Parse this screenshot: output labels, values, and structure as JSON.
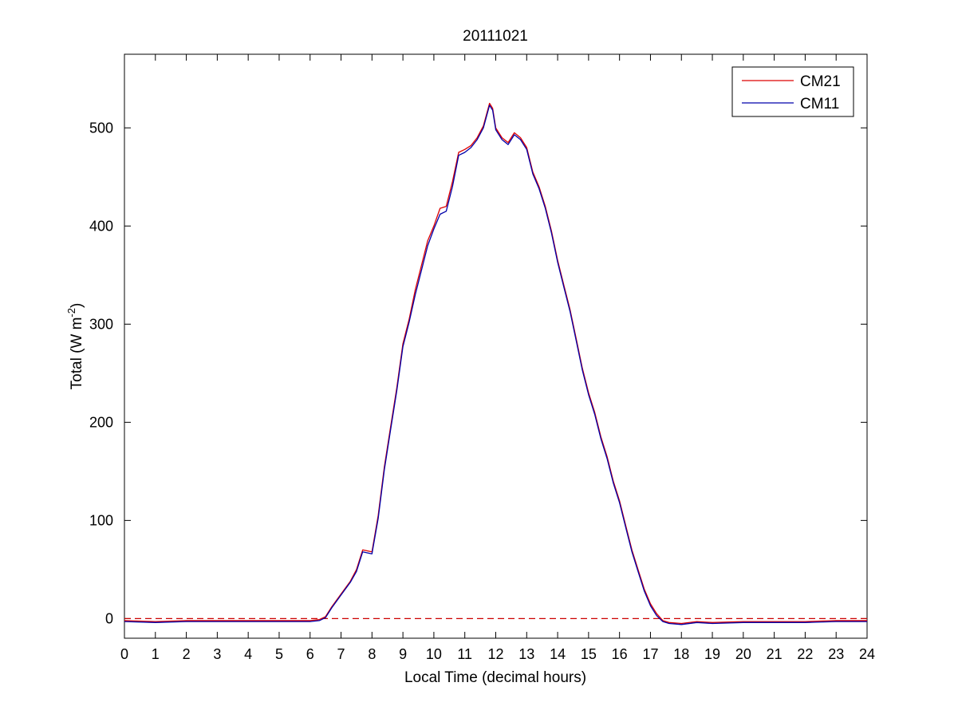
{
  "chart_data": {
    "type": "line",
    "title": "20111021",
    "xlabel": "Local Time (decimal hours)",
    "ylabel": {
      "prefix": "Total (W m",
      "superscript": "-2",
      "suffix": ")"
    },
    "xlim": [
      0,
      24
    ],
    "ylim": [
      -20,
      575
    ],
    "xticks": [
      0,
      1,
      2,
      3,
      4,
      5,
      6,
      7,
      8,
      9,
      10,
      11,
      12,
      13,
      14,
      15,
      16,
      17,
      18,
      19,
      20,
      21,
      22,
      23,
      24
    ],
    "yticks": [
      0,
      100,
      200,
      300,
      400,
      500
    ],
    "grid": false,
    "legend_position": "top-right",
    "reference_line": {
      "y": 0,
      "style": "dashed",
      "color": "#cc0000"
    },
    "series": [
      {
        "name": "CM21",
        "color": "#dd0000",
        "x": [
          0,
          1,
          2,
          3,
          4,
          5,
          6,
          6.3,
          6.5,
          6.7,
          7.0,
          7.3,
          7.5,
          7.7,
          8.0,
          8.2,
          8.4,
          8.6,
          8.8,
          9.0,
          9.2,
          9.4,
          9.6,
          9.8,
          10.0,
          10.2,
          10.4,
          10.6,
          10.8,
          11.0,
          11.2,
          11.4,
          11.6,
          11.8,
          11.9,
          12.0,
          12.2,
          12.4,
          12.6,
          12.8,
          13.0,
          13.2,
          13.4,
          13.6,
          13.8,
          14.0,
          14.2,
          14.4,
          14.6,
          14.8,
          15.0,
          15.2,
          15.4,
          15.6,
          15.8,
          16.0,
          16.2,
          16.4,
          16.6,
          16.8,
          17.0,
          17.2,
          17.4,
          17.6,
          18.0,
          18.5,
          19,
          20,
          21,
          22,
          23,
          24
        ],
        "values": [
          -2,
          -3,
          -2,
          -2,
          -2,
          -2,
          -2,
          -1,
          2,
          12,
          25,
          38,
          50,
          70,
          68,
          105,
          155,
          195,
          235,
          280,
          305,
          335,
          360,
          385,
          400,
          418,
          420,
          445,
          475,
          478,
          482,
          490,
          502,
          525,
          520,
          500,
          490,
          485,
          495,
          490,
          480,
          455,
          440,
          420,
          395,
          365,
          340,
          315,
          285,
          255,
          230,
          210,
          185,
          165,
          140,
          120,
          95,
          70,
          50,
          30,
          15,
          5,
          -2,
          -4,
          -5,
          -3,
          -4,
          -3,
          -3,
          -3,
          -2,
          -2
        ]
      },
      {
        "name": "CM11",
        "color": "#0000aa",
        "x": [
          0,
          1,
          2,
          3,
          4,
          5,
          6,
          6.3,
          6.5,
          6.7,
          7.0,
          7.3,
          7.5,
          7.7,
          8.0,
          8.2,
          8.4,
          8.6,
          8.8,
          9.0,
          9.2,
          9.4,
          9.6,
          9.8,
          10.0,
          10.2,
          10.4,
          10.6,
          10.8,
          11.0,
          11.2,
          11.4,
          11.6,
          11.8,
          11.9,
          12.0,
          12.2,
          12.4,
          12.6,
          12.8,
          13.0,
          13.2,
          13.4,
          13.6,
          13.8,
          14.0,
          14.2,
          14.4,
          14.6,
          14.8,
          15.0,
          15.2,
          15.4,
          15.6,
          15.8,
          16.0,
          16.2,
          16.4,
          16.6,
          16.8,
          17.0,
          17.2,
          17.4,
          17.6,
          18.0,
          18.5,
          19,
          20,
          21,
          22,
          23,
          24
        ],
        "values": [
          -3,
          -4,
          -3,
          -3,
          -3,
          -3,
          -3,
          -2,
          1,
          11,
          24,
          37,
          48,
          68,
          66,
          102,
          152,
          192,
          232,
          277,
          302,
          330,
          355,
          380,
          397,
          412,
          415,
          440,
          472,
          475,
          480,
          488,
          500,
          523,
          518,
          498,
          488,
          483,
          493,
          488,
          478,
          453,
          438,
          418,
          393,
          363,
          338,
          313,
          283,
          253,
          228,
          208,
          183,
          163,
          138,
          118,
          93,
          68,
          48,
          28,
          13,
          3,
          -3,
          -5,
          -6,
          -4,
          -5,
          -4,
          -4,
          -4,
          -3,
          -3
        ]
      }
    ]
  }
}
